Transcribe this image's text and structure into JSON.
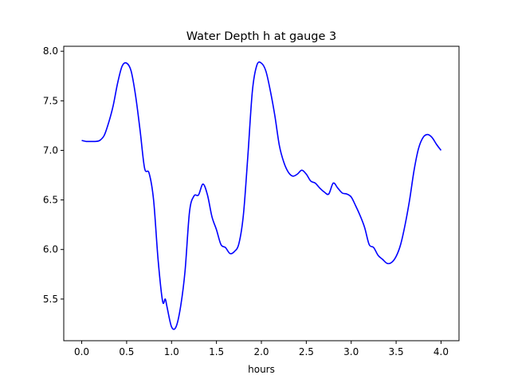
{
  "chart_data": {
    "type": "line",
    "title": "Water Depth h at gauge 3",
    "xlabel": "hours",
    "ylabel": "",
    "xlim": [
      -0.2,
      4.2
    ],
    "ylim": [
      5.08,
      8.05
    ],
    "x_ticks": [
      {
        "value": 0.0,
        "label": "0.0"
      },
      {
        "value": 0.5,
        "label": "0.5"
      },
      {
        "value": 1.0,
        "label": "1.0"
      },
      {
        "value": 1.5,
        "label": "1.5"
      },
      {
        "value": 2.0,
        "label": "2.0"
      },
      {
        "value": 2.5,
        "label": "2.5"
      },
      {
        "value": 3.0,
        "label": "3.0"
      },
      {
        "value": 3.5,
        "label": "3.5"
      },
      {
        "value": 4.0,
        "label": "4.0"
      }
    ],
    "y_ticks": [
      {
        "value": 5.5,
        "label": "5.5"
      },
      {
        "value": 6.0,
        "label": "6.0"
      },
      {
        "value": 6.5,
        "label": "6.5"
      },
      {
        "value": 7.0,
        "label": "7.0"
      },
      {
        "value": 7.5,
        "label": "7.5"
      },
      {
        "value": 8.0,
        "label": "8.0"
      }
    ],
    "grid": false,
    "series": [
      {
        "color": "#0000ff",
        "x": [
          0.0,
          0.05,
          0.1,
          0.15,
          0.2,
          0.25,
          0.3,
          0.35,
          0.4,
          0.45,
          0.5,
          0.55,
          0.6,
          0.65,
          0.7,
          0.75,
          0.8,
          0.85,
          0.9,
          0.93,
          0.95,
          1.0,
          1.05,
          1.1,
          1.15,
          1.2,
          1.25,
          1.3,
          1.35,
          1.4,
          1.45,
          1.5,
          1.55,
          1.6,
          1.65,
          1.7,
          1.75,
          1.8,
          1.85,
          1.9,
          1.95,
          2.0,
          2.05,
          2.1,
          2.15,
          2.2,
          2.25,
          2.3,
          2.35,
          2.4,
          2.45,
          2.5,
          2.55,
          2.6,
          2.65,
          2.7,
          2.75,
          2.8,
          2.85,
          2.9,
          2.95,
          3.0,
          3.05,
          3.1,
          3.15,
          3.2,
          3.25,
          3.3,
          3.35,
          3.4,
          3.45,
          3.5,
          3.55,
          3.6,
          3.65,
          3.7,
          3.75,
          3.8,
          3.85,
          3.9,
          3.95,
          4.0
        ],
        "values": [
          7.1,
          7.09,
          7.09,
          7.09,
          7.1,
          7.15,
          7.28,
          7.45,
          7.68,
          7.85,
          7.88,
          7.8,
          7.55,
          7.2,
          6.82,
          6.77,
          6.5,
          5.9,
          5.48,
          5.5,
          5.42,
          5.22,
          5.22,
          5.42,
          5.78,
          6.38,
          6.54,
          6.55,
          6.66,
          6.55,
          6.33,
          6.2,
          6.05,
          6.02,
          5.96,
          5.98,
          6.06,
          6.35,
          6.95,
          7.6,
          7.86,
          7.88,
          7.8,
          7.6,
          7.35,
          7.05,
          6.88,
          6.78,
          6.74,
          6.76,
          6.8,
          6.76,
          6.69,
          6.67,
          6.62,
          6.58,
          6.56,
          6.67,
          6.62,
          6.57,
          6.56,
          6.53,
          6.44,
          6.34,
          6.22,
          6.05,
          6.02,
          5.94,
          5.9,
          5.86,
          5.87,
          5.93,
          6.05,
          6.25,
          6.5,
          6.8,
          7.02,
          7.13,
          7.16,
          7.13,
          7.06,
          7.0
        ]
      }
    ]
  }
}
